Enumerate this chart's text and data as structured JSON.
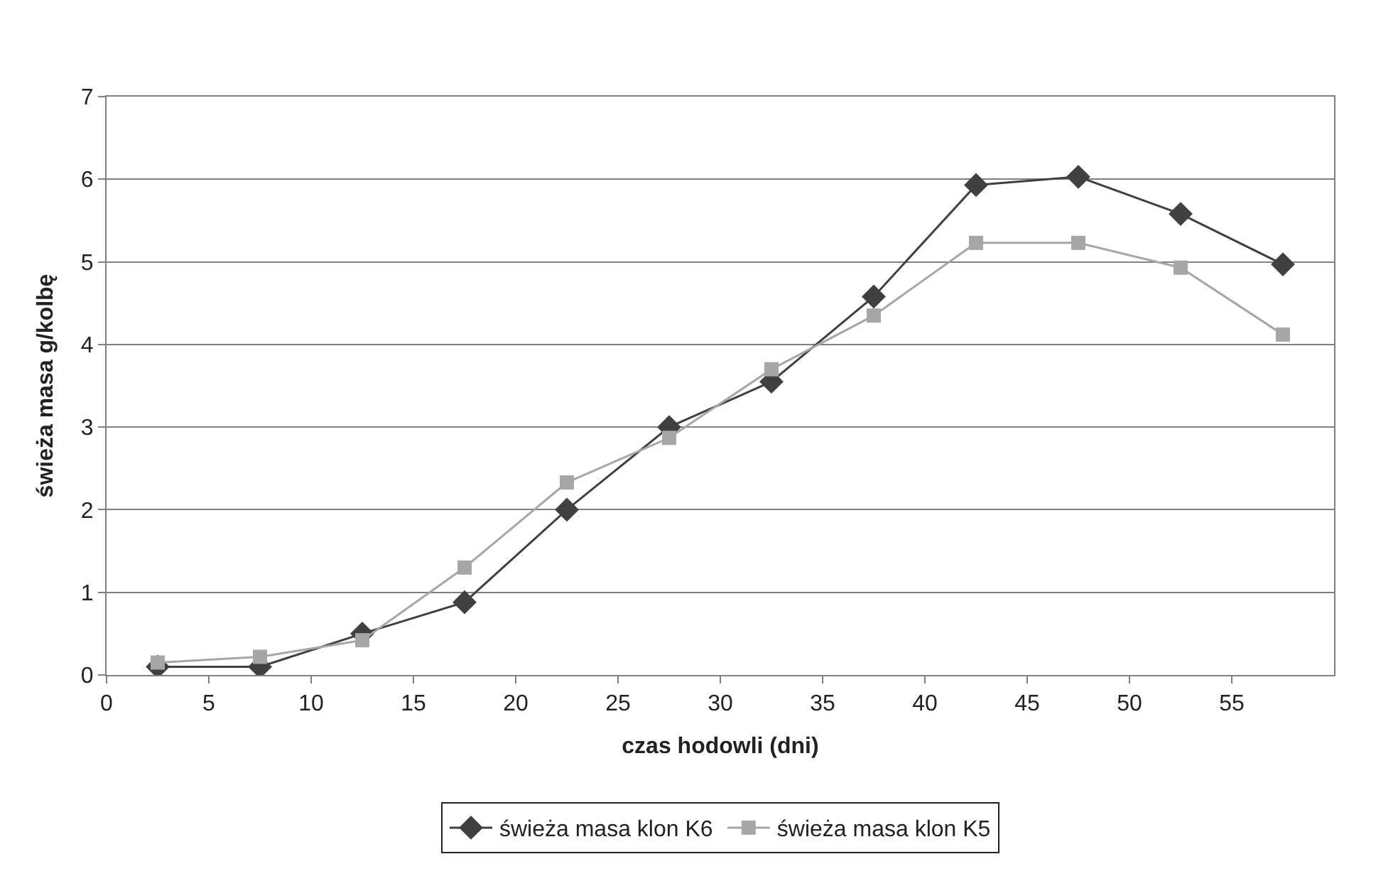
{
  "chart_data": {
    "type": "line",
    "xlabel": "czas hodowli (dni)",
    "ylabel": "świeża masa g/kolbę",
    "x": [
      2.5,
      7.5,
      12.5,
      17.5,
      22.5,
      27.5,
      32.5,
      37.5,
      42.5,
      47.5,
      52.5,
      57.5
    ],
    "series": [
      {
        "name": "świeża masa klon K6",
        "color": "#404040",
        "marker": "diamond",
        "values": [
          0.1,
          0.1,
          0.5,
          0.88,
          2.0,
          3.0,
          3.55,
          4.58,
          5.93,
          6.03,
          5.58,
          4.97
        ]
      },
      {
        "name": "świeża masa klon K5",
        "color": "#a6a6a6",
        "marker": "square",
        "values": [
          0.15,
          0.22,
          0.42,
          1.3,
          2.33,
          2.87,
          3.7,
          4.35,
          5.23,
          5.23,
          4.93,
          4.12
        ]
      }
    ],
    "xlim": [
      0,
      60
    ],
    "xticks": [
      0,
      5,
      10,
      15,
      20,
      25,
      30,
      35,
      40,
      45,
      50,
      55
    ],
    "ylim": [
      0,
      7
    ],
    "yticks": [
      0,
      1,
      2,
      3,
      4,
      5,
      6,
      7
    ],
    "grid": "y",
    "legend": "bottom",
    "line_style": "solid"
  }
}
